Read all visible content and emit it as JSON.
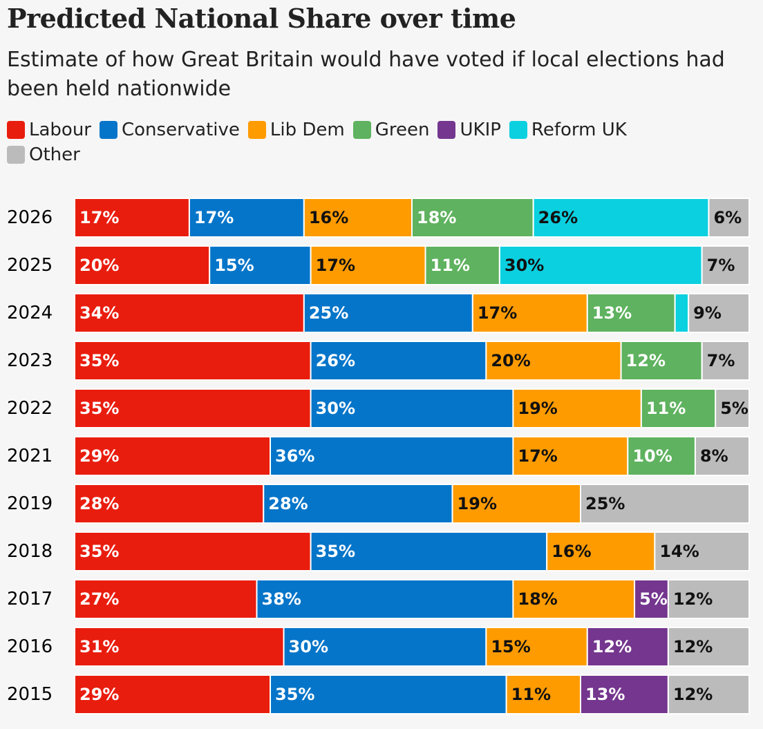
{
  "chart_data": {
    "type": "stacked-bar-horizontal",
    "title": "Predicted National Share over time",
    "subtitle": "Estimate of how Great Britain would have voted if local elections had been held nationwide",
    "categories": [
      "2026",
      "2025",
      "2024",
      "2023",
      "2022",
      "2021",
      "2019",
      "2018",
      "2017",
      "2016",
      "2015"
    ],
    "xlim": [
      0,
      100
    ],
    "series": [
      {
        "name": "Labour",
        "color": "#e91d0e",
        "label_color": "#ffffff",
        "values": [
          17,
          20,
          34,
          35,
          35,
          29,
          28,
          35,
          27,
          31,
          29
        ],
        "value_labels": [
          "17%",
          "20%",
          "34%",
          "35%",
          "35%",
          "29%",
          "28%",
          "35%",
          "27%",
          "31%",
          "29%"
        ]
      },
      {
        "name": "Conservative",
        "color": "#0575c9",
        "label_color": "#ffffff",
        "values": [
          17,
          15,
          25,
          26,
          30,
          36,
          28,
          35,
          38,
          30,
          35
        ],
        "value_labels": [
          "17%",
          "15%",
          "25%",
          "26%",
          "30%",
          "36%",
          "28%",
          "35%",
          "38%",
          "30%",
          "35%"
        ]
      },
      {
        "name": "Lib Dem",
        "color": "#fe9b00",
        "label_color": "#111111",
        "values": [
          16,
          17,
          17,
          20,
          19,
          17,
          19,
          16,
          18,
          15,
          11
        ],
        "value_labels": [
          "16%",
          "17%",
          "17%",
          "20%",
          "19%",
          "17%",
          "19%",
          "16%",
          "18%",
          "15%",
          "11%"
        ]
      },
      {
        "name": "Green",
        "color": "#5fb25f",
        "label_color": "#ffffff",
        "values": [
          18,
          11,
          13,
          12,
          11,
          10,
          null,
          null,
          null,
          null,
          null
        ],
        "value_labels": [
          "18%",
          "11%",
          "13%",
          "12%",
          "11%",
          "10%",
          null,
          null,
          null,
          null,
          null
        ]
      },
      {
        "name": "UKIP",
        "color": "#74368e",
        "label_color": "#ffffff",
        "values": [
          null,
          null,
          null,
          null,
          null,
          null,
          null,
          null,
          5,
          12,
          13
        ],
        "value_labels": [
          null,
          null,
          null,
          null,
          null,
          null,
          null,
          null,
          "5%",
          "12%",
          "13%"
        ]
      },
      {
        "name": "Reform UK",
        "color": "#0bd0e0",
        "label_color": "#111111",
        "values": [
          26,
          30,
          2,
          null,
          null,
          null,
          null,
          null,
          null,
          null,
          null
        ],
        "value_labels": [
          "26%",
          "30%",
          null,
          null,
          null,
          null,
          null,
          null,
          null,
          null,
          null
        ]
      },
      {
        "name": "Other",
        "color": "#bbbbbb",
        "label_color": "#111111",
        "values": [
          6,
          7,
          9,
          7,
          5,
          8,
          25,
          14,
          12,
          12,
          12
        ],
        "value_labels": [
          "6%",
          "7%",
          "9%",
          "7%",
          "5%",
          "8%",
          "25%",
          "14%",
          "12%",
          "12%",
          "12%"
        ]
      }
    ]
  }
}
